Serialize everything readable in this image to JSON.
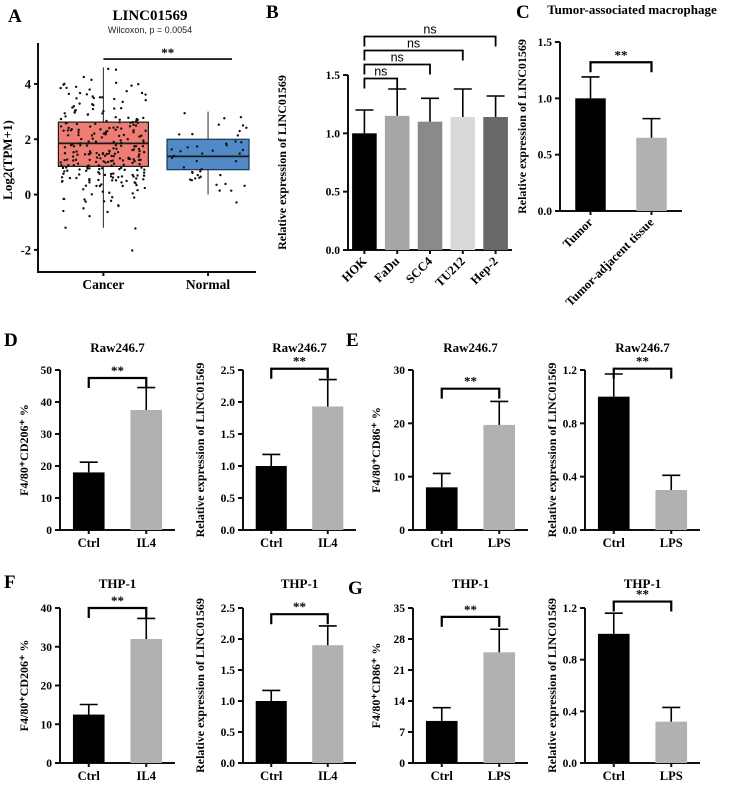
{
  "figure": {
    "panels": [
      {
        "label": "A"
      },
      {
        "label": "B"
      },
      {
        "label": "C"
      },
      {
        "label": "D"
      },
      {
        "label": "E"
      },
      {
        "label": "F"
      },
      {
        "label": "G"
      }
    ],
    "colors": {
      "bar_black": "#000000",
      "bar_gray": "#b1b1b1",
      "box_cancer": "#ee7d74",
      "box_normal": "#5289c7",
      "axis": "#0f0f0f"
    }
  },
  "chart_data": [
    {
      "panel": "A",
      "type": "boxplot",
      "title": "LINC01569",
      "subtitle": "Wilcoxon, p = 0.0054",
      "significance": "**",
      "sig_y": 4.9,
      "ylabel": "Log2(TPM+1)",
      "yticks": [
        -2,
        0,
        2,
        4
      ],
      "ylim": [
        -2.8,
        5.3
      ],
      "categories": [
        "Cancer",
        "Normal"
      ],
      "boxes": [
        {
          "label": "Cancer",
          "color": "#ee7d74",
          "edge": "#1a1a1a",
          "q1": 1.02,
          "median": 1.85,
          "q3": 2.62,
          "whisker_low": -1.2,
          "whisker_high": 4.6,
          "points": {
            "n": 270,
            "mean": 1.75,
            "sd": 1.15,
            "min": -2.2,
            "max": 4.55
          }
        },
        {
          "label": "Normal",
          "color": "#5289c7",
          "edge": "#17365c",
          "q1": 0.9,
          "median": 1.38,
          "q3": 2.0,
          "whisker_low": 0.0,
          "whisker_high": 3.0,
          "points": {
            "n": 44,
            "mean": 1.4,
            "sd": 0.78,
            "min": -0.9,
            "max": 2.95
          }
        }
      ]
    },
    {
      "panel": "B",
      "type": "bar",
      "title": "",
      "ylabel": "Relative expression of LINC01569",
      "categories": [
        "HOK",
        "FaDu",
        "SCC4",
        "TU212",
        "Hep-2"
      ],
      "values": [
        1.0,
        1.15,
        1.1,
        1.14,
        1.14
      ],
      "errors": [
        0.2,
        0.23,
        0.2,
        0.24,
        0.18
      ],
      "colors": [
        "#000000",
        "#a6a6a6",
        "#8a8a8a",
        "#d9d9d9",
        "#686868"
      ],
      "ylim": [
        0,
        1.5
      ],
      "ystep": 0.5,
      "significance": [
        {
          "from": 0,
          "to": 1,
          "label": "ns",
          "y": 1.47
        },
        {
          "from": 0,
          "to": 2,
          "label": "ns",
          "y": 1.59
        },
        {
          "from": 0,
          "to": 3,
          "label": "ns",
          "y": 1.71
        },
        {
          "from": 0,
          "to": 4,
          "label": "ns",
          "y": 1.83
        }
      ]
    },
    {
      "panel": "C",
      "type": "bar",
      "title": "Tumor-associated macrophage",
      "ylabel": "Relative expression of LINC01569",
      "categories": [
        "Tumor",
        "Tumor-adjacent tissue"
      ],
      "values": [
        1.0,
        0.65
      ],
      "errors": [
        0.19,
        0.17
      ],
      "colors": [
        "#000000",
        "#b1b1b1"
      ],
      "ylim": [
        0,
        1.5
      ],
      "ystep": 0.5,
      "significance": [
        {
          "from": 0,
          "to": 1,
          "label": "**",
          "y": 1.32
        }
      ]
    },
    {
      "panel": "D",
      "type": "bar",
      "title": "Raw246.7",
      "ylabel": "F4/80⁺CD206⁺ %",
      "categories": [
        "Ctrl",
        "IL4"
      ],
      "values": [
        18,
        37.5
      ],
      "errors": [
        3.2,
        7.0
      ],
      "colors": [
        "#000000",
        "#b1b1b1"
      ],
      "ylim": [
        0,
        50
      ],
      "ystep": 10,
      "significance": [
        {
          "from": 0,
          "to": 1,
          "label": "**",
          "y": 47.5
        }
      ]
    },
    {
      "panel": "D",
      "type": "bar",
      "title": "Raw246.7",
      "ylabel": "Relative expression of LINC01569",
      "categories": [
        "Ctrl",
        "IL4"
      ],
      "values": [
        1.0,
        1.93
      ],
      "errors": [
        0.18,
        0.42
      ],
      "colors": [
        "#000000",
        "#b1b1b1"
      ],
      "ylim": [
        0,
        2.5
      ],
      "ystep": 0.5,
      "significance": [
        {
          "from": 0,
          "to": 1,
          "label": "**",
          "y": 2.52
        }
      ]
    },
    {
      "panel": "E",
      "type": "bar",
      "title": "Raw246.7",
      "ylabel": "F4/80⁺CD86⁺ %",
      "categories": [
        "Ctrl",
        "LPS"
      ],
      "values": [
        8,
        19.7
      ],
      "errors": [
        2.6,
        4.4
      ],
      "colors": [
        "#000000",
        "#b1b1b1"
      ],
      "ylim": [
        0,
        30
      ],
      "ystep": 10,
      "significance": [
        {
          "from": 0,
          "to": 1,
          "label": "**",
          "y": 26.5
        }
      ]
    },
    {
      "panel": "E",
      "type": "bar",
      "title": "Raw246.7",
      "ylabel": "Relative expression of LINC01569",
      "categories": [
        "Ctrl",
        "LPS"
      ],
      "values": [
        1.0,
        0.3
      ],
      "errors": [
        0.17,
        0.11
      ],
      "colors": [
        "#000000",
        "#b1b1b1"
      ],
      "ylim": [
        0,
        1.2
      ],
      "ystep": 0.4,
      "significance": [
        {
          "from": 0,
          "to": 1,
          "label": "**",
          "y": 1.21
        }
      ]
    },
    {
      "panel": "F",
      "type": "bar",
      "title": "THP-1",
      "ylabel": "F4/80⁺CD206⁺ %",
      "categories": [
        "Ctrl",
        "IL4"
      ],
      "values": [
        12.5,
        32
      ],
      "errors": [
        2.6,
        5.3
      ],
      "colors": [
        "#000000",
        "#b1b1b1"
      ],
      "ylim": [
        0,
        40
      ],
      "ystep": 10,
      "significance": [
        {
          "from": 0,
          "to": 1,
          "label": "**",
          "y": 40
        }
      ]
    },
    {
      "panel": "F",
      "type": "bar",
      "title": "THP-1",
      "ylabel": "Relative expression of LINC01569",
      "categories": [
        "Ctrl",
        "IL4"
      ],
      "values": [
        1.0,
        1.9
      ],
      "errors": [
        0.17,
        0.31
      ],
      "colors": [
        "#000000",
        "#b1b1b1"
      ],
      "ylim": [
        0,
        2.5
      ],
      "ystep": 0.5,
      "significance": [
        {
          "from": 0,
          "to": 1,
          "label": "**",
          "y": 2.4
        }
      ]
    },
    {
      "panel": "G",
      "type": "bar",
      "title": "THP-1",
      "ylabel": "F4/80⁺CD86⁺ %",
      "categories": [
        "Ctrl",
        "LPS"
      ],
      "values": [
        9.5,
        25
      ],
      "errors": [
        3.0,
        5.2
      ],
      "colors": [
        "#000000",
        "#b1b1b1"
      ],
      "ylim": [
        0,
        35
      ],
      "ystep": 7,
      "significance": [
        {
          "from": 0,
          "to": 1,
          "label": "**",
          "y": 33
        }
      ]
    },
    {
      "panel": "G",
      "type": "bar",
      "title": "THP-1",
      "ylabel": "Relative expression of LINC01569",
      "categories": [
        "Ctrl",
        "LPS"
      ],
      "values": [
        1.0,
        0.32
      ],
      "errors": [
        0.16,
        0.11
      ],
      "colors": [
        "#000000",
        "#b1b1b1"
      ],
      "ylim": [
        0,
        1.2
      ],
      "ystep": 0.4,
      "significance": [
        {
          "from": 0,
          "to": 1,
          "label": "**",
          "y": 1.25
        }
      ]
    }
  ]
}
